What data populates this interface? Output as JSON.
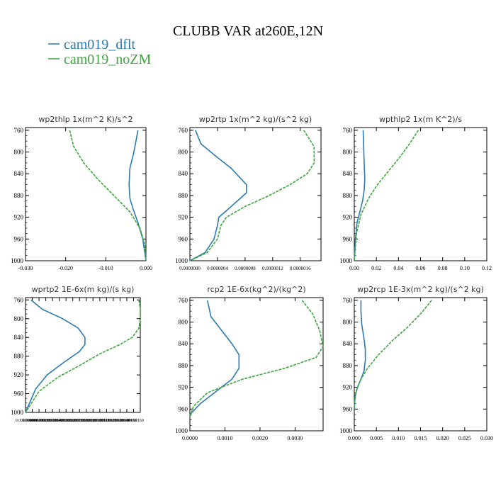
{
  "figure": {
    "title": "CLUBB VAR at260E,12N",
    "legend": [
      {
        "name": "cam019_dflt",
        "color": "#2b7bb0"
      },
      {
        "name": "cam019_noZM",
        "color": "#3ca83c"
      }
    ]
  },
  "chart_data": [
    {
      "type": "line",
      "title": "wp2thlp  1x(m^2 K)/s^2",
      "y_ticks": [
        "760",
        "800",
        "840",
        "880",
        "920",
        "960",
        "1000"
      ],
      "x_ticks": [
        "-0.030",
        "-0.020",
        "-0.010",
        "0.000"
      ],
      "xlim": [
        -0.03,
        0.0
      ],
      "ylim": [
        1000,
        755
      ],
      "series": [
        {
          "name": "cam019_dflt",
          "x": [
            -0.002,
            -0.003,
            -0.004,
            -0.0042,
            -0.004,
            -0.0032,
            -0.002,
            -0.0008,
            0.0
          ],
          "y": [
            760,
            800,
            830,
            860,
            885,
            905,
            930,
            960,
            1000
          ]
        },
        {
          "name": "cam019_noZM",
          "x": [
            -0.019,
            -0.018,
            -0.0155,
            -0.012,
            -0.008,
            -0.004,
            -0.0015,
            -0.0003,
            0.0
          ],
          "y": [
            760,
            790,
            820,
            850,
            880,
            910,
            940,
            970,
            1000
          ]
        }
      ]
    },
    {
      "type": "line",
      "title": "wp2rtp  1x(m^2 kg)/(s^2 kg)",
      "y_ticks": [
        "760",
        "800",
        "840",
        "880",
        "920",
        "960",
        "1000"
      ],
      "x_ticks": [
        "0.0000000",
        "0.0000004",
        "0.0000008",
        "0.0000012",
        "0.0000016"
      ],
      "xlim": [
        0.0,
        1.9e-06
      ],
      "ylim": [
        1000,
        755
      ],
      "series": [
        {
          "name": "cam019_dflt",
          "x": [
            8e-08,
            1.6e-07,
            3.5e-07,
            6e-07,
            8.2e-07,
            8.2e-07,
            6e-07,
            4.2e-07,
            4e-07,
            3.5e-07,
            2.2e-07,
            0.0
          ],
          "y": [
            760,
            785,
            805,
            830,
            860,
            875,
            900,
            920,
            935,
            960,
            985,
            1000
          ]
        },
        {
          "name": "cam019_noZM",
          "x": [
            1.65e-06,
            1.8e-06,
            1.8e-06,
            1.7e-06,
            1.45e-06,
            1.15e-06,
            8e-07,
            5.3e-07,
            4.5e-07,
            4e-07,
            2.5e-07,
            0.0
          ],
          "y": [
            760,
            790,
            820,
            840,
            860,
            880,
            900,
            920,
            935,
            960,
            985,
            1000
          ]
        }
      ]
    },
    {
      "type": "line",
      "title": "wpthlp2  1x(m K^2)/s",
      "y_ticks": [
        "760",
        "800",
        "840",
        "880",
        "920",
        "960",
        "1000"
      ],
      "x_ticks": [
        "0.00",
        "0.02",
        "0.04",
        "0.06",
        "0.08",
        "0.10",
        "0.12"
      ],
      "xlim": [
        0.0,
        0.12
      ],
      "ylim": [
        1000,
        755
      ],
      "series": [
        {
          "name": "cam019_dflt",
          "x": [
            0.008,
            0.0085,
            0.009,
            0.0095,
            0.009,
            0.0075,
            0.005,
            0.0025,
            0.001,
            0.0
          ],
          "y": [
            760,
            790,
            820,
            850,
            870,
            890,
            910,
            930,
            960,
            1000
          ]
        },
        {
          "name": "cam019_noZM",
          "x": [
            0.058,
            0.05,
            0.041,
            0.031,
            0.021,
            0.013,
            0.006,
            0.002,
            0.0
          ],
          "y": [
            760,
            785,
            810,
            835,
            860,
            885,
            915,
            950,
            1000
          ]
        }
      ]
    },
    {
      "type": "line",
      "title": "wprtp2  1E-6x(m kg)/(s kg)",
      "y_ticks": [
        "760",
        "800",
        "840",
        "880",
        "920",
        "960",
        "1000"
      ],
      "x_ticks": [
        "0.00000000",
        "0.00000010",
        "0.00000020",
        "0.00000030",
        "0.00000040",
        "0.00000050",
        "0.00000060",
        "0.00000070",
        "0.00000080",
        "0.00000090",
        "0.00000100",
        "0.00000110",
        "0.00000120",
        "0.00000130",
        "0.00000140",
        "0.00000150",
        "0.00000160"
      ],
      "xlim": [
        0.0,
        1.7e-06
      ],
      "ylim": [
        1000,
        755
      ],
      "series": [
        {
          "name": "cam019_dflt",
          "x": [
            8e-08,
            2.5e-07,
            5.5e-07,
            7.8e-07,
            8.8e-07,
            8.8e-07,
            8e-07,
            5.5e-07,
            3.2e-07,
            1.5e-07,
            0.0
          ],
          "y": [
            760,
            780,
            800,
            820,
            840,
            855,
            870,
            895,
            920,
            950,
            1000
          ]
        },
        {
          "name": "cam019_noZM",
          "x": [
            1.68e-06,
            1.7e-06,
            1.7e-06,
            1.68e-06,
            1.58e-06,
            1.4e-06,
            1.1e-06,
            8e-07,
            4.8e-07,
            2e-07,
            0.0
          ],
          "y": [
            760,
            780,
            800,
            820,
            840,
            855,
            875,
            900,
            925,
            955,
            1000
          ]
        }
      ]
    },
    {
      "type": "line",
      "title": "rcp2  1E-6x(kg^2)/(kg^2)",
      "y_ticks": [
        "760",
        "800",
        "840",
        "880",
        "920",
        "960",
        "1000"
      ],
      "x_ticks": [
        "0.0000",
        "0.0010",
        "0.0020",
        "0.0030"
      ],
      "xlim": [
        0.0,
        0.0038
      ],
      "ylim": [
        1000,
        755
      ],
      "series": [
        {
          "name": "cam019_dflt",
          "x": [
            0.0005,
            0.0006,
            0.0009,
            0.0012,
            0.0014,
            0.0014,
            0.0012,
            0.0008,
            0.0003,
            0.0
          ],
          "y": [
            760,
            790,
            815,
            840,
            860,
            885,
            905,
            925,
            950,
            970
          ]
        },
        {
          "name": "cam019_noZM",
          "x": [
            0.0032,
            0.0035,
            0.0037,
            0.0038,
            0.0036,
            0.0027,
            0.0015,
            0.0005,
            0.0001,
            0.0
          ],
          "y": [
            760,
            785,
            815,
            845,
            865,
            885,
            905,
            930,
            955,
            975
          ]
        }
      ]
    },
    {
      "type": "line",
      "title": "wp2rcp  1E-3x(m^2 kg)/(s^2 kg)",
      "y_ticks": [
        "760",
        "800",
        "840",
        "880",
        "920",
        "960",
        "1000"
      ],
      "x_ticks": [
        "0.000",
        "0.005",
        "0.010",
        "0.015",
        "0.020",
        "0.025",
        "0.030"
      ],
      "xlim": [
        0.0,
        0.03
      ],
      "ylim": [
        1000,
        755
      ],
      "series": [
        {
          "name": "cam019_dflt",
          "x": [
            0.0015,
            0.0015,
            0.0017,
            0.0022,
            0.0025,
            0.0025,
            0.0022,
            0.0015,
            0.0008,
            0.0002,
            0.0
          ],
          "y": [
            760,
            780,
            805,
            830,
            850,
            870,
            890,
            905,
            918,
            935,
            960
          ]
        },
        {
          "name": "cam019_noZM",
          "x": [
            0.0175,
            0.015,
            0.012,
            0.0085,
            0.0055,
            0.003,
            0.0015,
            0.0005,
            0.0001,
            0.0
          ],
          "y": [
            760,
            785,
            810,
            835,
            860,
            885,
            905,
            925,
            945,
            960
          ]
        }
      ]
    }
  ]
}
